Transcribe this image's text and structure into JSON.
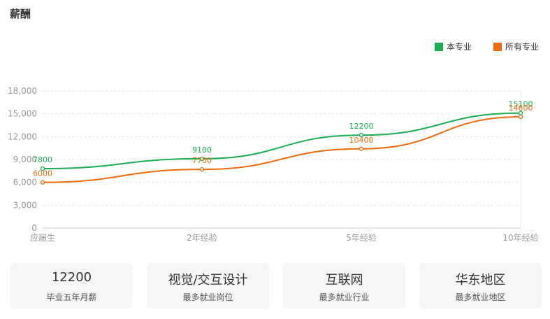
{
  "title": "薪酬",
  "legend": [
    {
      "label": "本专业",
      "color": "#1aad52"
    },
    {
      "label": "所有专业",
      "color": "#f06a0c"
    }
  ],
  "chart_data": {
    "type": "line",
    "categories": [
      "应届生",
      "2年经验",
      "5年经验",
      "10年经验"
    ],
    "series": [
      {
        "name": "本专业",
        "values": [
          7800,
          9100,
          12200,
          15100
        ],
        "color": "#1aad52"
      },
      {
        "name": "所有专业",
        "values": [
          6000,
          7700,
          10400,
          14600
        ],
        "color": "#f06a0c"
      }
    ],
    "ylim": [
      0,
      18000
    ],
    "yticks": [
      0,
      3000,
      6000,
      9000,
      12000,
      15000,
      18000
    ],
    "ytick_labels": [
      "0",
      "3,000",
      "6,000",
      "9,000",
      "12,000",
      "15,000",
      "18,000"
    ],
    "grid": true,
    "legend_position": "top-right",
    "xlabel": "",
    "ylabel": ""
  },
  "cards": [
    {
      "value": "12200",
      "label": "毕业五年月薪"
    },
    {
      "value": "视觉/交互设计",
      "label": "最多就业岗位"
    },
    {
      "value": "互联网",
      "label": "最多就业行业"
    },
    {
      "value": "华东地区",
      "label": "最多就业地区"
    }
  ]
}
